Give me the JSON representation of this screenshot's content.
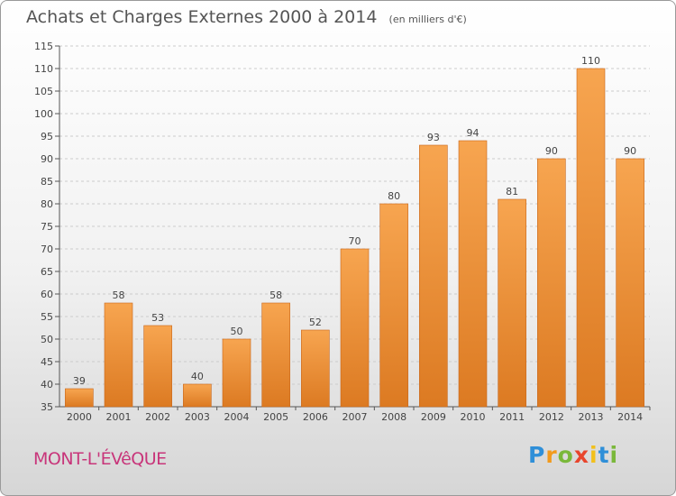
{
  "header": {
    "title": "Achats et Charges Externes 2000 à 2014",
    "unit": "(en milliers d'€)"
  },
  "footer": {
    "commune": "MONT-L'ÉVêQUE",
    "brand": "Proxiti"
  },
  "colors": {
    "bar_light": "#f7a550",
    "bar_dark": "#e07820",
    "bar_edge": "#c8661a",
    "grid": "#cccccc",
    "commune_text": "#c8357a"
  },
  "chart_data": {
    "type": "bar",
    "title": "Achats et Charges Externes 2000 à 2014",
    "subtitle": "(en milliers d'€)",
    "xlabel": "",
    "ylabel": "",
    "categories": [
      "2000",
      "2001",
      "2002",
      "2003",
      "2004",
      "2005",
      "2006",
      "2007",
      "2008",
      "2009",
      "2010",
      "2011",
      "2012",
      "2013",
      "2014"
    ],
    "values": [
      39,
      58,
      53,
      40,
      50,
      58,
      52,
      70,
      80,
      93,
      94,
      81,
      90,
      110,
      90
    ],
    "ylim": [
      35,
      115
    ],
    "yticks": [
      35,
      40,
      45,
      50,
      55,
      60,
      65,
      70,
      75,
      80,
      85,
      90,
      95,
      100,
      105,
      110,
      115
    ],
    "grid": "horizontal-dashed",
    "legend": "none"
  }
}
